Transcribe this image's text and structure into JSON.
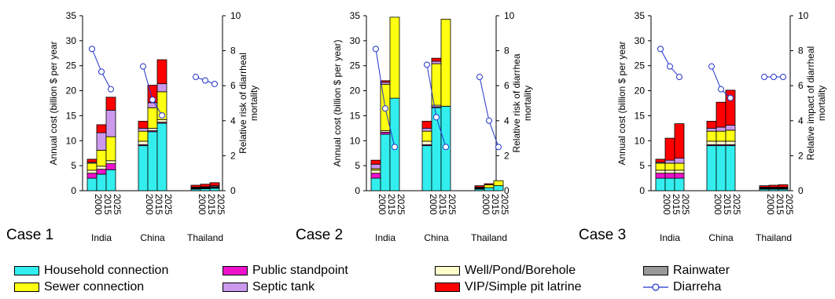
{
  "chart_data": [
    {
      "type": "bar",
      "case_label": "Case 1",
      "categories": [
        "India",
        "China",
        "Thailand"
      ],
      "years": [
        "2000",
        "2015",
        "2025"
      ],
      "ylabel": "Annual cost (billion $ per year",
      "y2label": [
        "Relative risk of diarrheal",
        "mortality"
      ],
      "ylim": [
        0,
        35
      ],
      "y2lim": [
        0,
        10
      ],
      "yticks": [
        "0",
        "5",
        "10",
        "15",
        "20",
        "25",
        "30",
        "35"
      ],
      "y2ticks": [
        "0",
        "2",
        "4",
        "6",
        "8",
        "10"
      ],
      "stacks": {
        "India": [
          [
            2.5,
            1.0,
            0.6,
            1.4,
            0.2,
            0.6
          ],
          [
            3.3,
            1.0,
            0.6,
            3.2,
            3.5,
            1.6
          ],
          [
            4.2,
            1.2,
            0.6,
            4.8,
            5.3,
            2.6
          ]
        ],
        "China": [
          [
            9.0,
            0.2,
            0.7,
            2.0,
            0.6,
            1.4
          ],
          [
            11.8,
            0.2,
            0.5,
            4.1,
            1.0,
            3.5
          ],
          [
            13.5,
            0.2,
            0.5,
            5.6,
            1.6,
            4.8
          ]
        ],
        "Thailand": [
          [
            0.3,
            0.1,
            0.1,
            0.1,
            0.1,
            0.4
          ],
          [
            0.4,
            0.1,
            0.1,
            0.1,
            0.1,
            0.5
          ],
          [
            0.5,
            0.1,
            0.1,
            0.1,
            0.2,
            0.6
          ]
        ]
      },
      "diarrhea": {
        "India": [
          8.1,
          6.8,
          5.8
        ],
        "China": [
          7.1,
          5.2,
          4.3
        ],
        "Thailand": [
          6.5,
          6.3,
          6.1
        ]
      }
    },
    {
      "type": "bar",
      "case_label": "Case 2",
      "categories": [
        "India",
        "China",
        "Thailand"
      ],
      "years": [
        "2000",
        "2015",
        "2025"
      ],
      "ylabel": "Annual cost (billion $ per year)",
      "y2label": [
        "Relative risk of diarrhea",
        "mortality"
      ],
      "ylim": [
        0,
        35
      ],
      "y2lim": [
        0,
        10
      ],
      "yticks": [
        "0",
        "5",
        "10",
        "15",
        "20",
        "25",
        "30",
        "35"
      ],
      "y2ticks": [
        "0",
        "2",
        "4",
        "6",
        "8",
        "10"
      ],
      "stacks": {
        "India": [
          [
            2.5,
            1.0,
            0.6,
            0.3,
            0.9,
            0.8
          ],
          [
            11.3,
            0.4,
            0.3,
            9.3,
            0.4,
            0.3
          ],
          [
            18.5,
            0.0,
            0.0,
            16.2,
            0.0,
            0.0
          ]
        ],
        "China": [
          [
            9.0,
            0.2,
            0.7,
            2.0,
            0.6,
            1.4
          ],
          [
            16.6,
            0.2,
            0.3,
            8.3,
            0.5,
            0.6
          ],
          [
            16.9,
            0.0,
            0.0,
            17.4,
            0.0,
            0.0
          ]
        ],
        "Thailand": [
          [
            0.3,
            0.1,
            0.1,
            0.1,
            0.1,
            0.3
          ],
          [
            0.6,
            0.0,
            0.0,
            0.6,
            0.0,
            0.2
          ],
          [
            1.0,
            0.0,
            0.0,
            1.0,
            0.0,
            0.0
          ]
        ]
      },
      "diarrhea": {
        "India": [
          8.1,
          4.7,
          2.5
        ],
        "China": [
          7.2,
          4.2,
          2.5
        ],
        "Thailand": [
          6.5,
          4.0,
          2.5
        ]
      }
    },
    {
      "type": "bar",
      "case_label": "Case 3",
      "categories": [
        "India",
        "China",
        "Thailand"
      ],
      "years": [
        "2000",
        "2015",
        "2025"
      ],
      "ylabel": "Annual cost (billion $ per year",
      "y2label": [
        "Relative impact of diarrheal",
        "mortality"
      ],
      "ylim": [
        0,
        35
      ],
      "y2lim": [
        0,
        10
      ],
      "yticks": [
        "0",
        "5",
        "10",
        "15",
        "20",
        "25",
        "30",
        "35"
      ],
      "y2ticks": [
        "0",
        "2",
        "4",
        "6",
        "8",
        "10"
      ],
      "stacks": {
        "India": [
          [
            2.5,
            1.0,
            0.6,
            1.4,
            0.2,
            0.6
          ],
          [
            2.5,
            1.0,
            0.6,
            1.4,
            0.6,
            4.4
          ],
          [
            2.5,
            1.0,
            0.6,
            1.4,
            1.0,
            6.9
          ]
        ],
        "China": [
          [
            9.0,
            0.2,
            0.7,
            2.0,
            0.6,
            1.4
          ],
          [
            9.0,
            0.2,
            0.7,
            2.0,
            0.8,
            5.0
          ],
          [
            9.0,
            0.2,
            0.7,
            2.2,
            1.0,
            7.0
          ]
        ],
        "Thailand": [
          [
            0.3,
            0.1,
            0.1,
            0.1,
            0.1,
            0.3
          ],
          [
            0.3,
            0.1,
            0.1,
            0.1,
            0.1,
            0.4
          ],
          [
            0.3,
            0.1,
            0.1,
            0.1,
            0.1,
            0.5
          ]
        ]
      },
      "diarrhea": {
        "India": [
          8.1,
          7.1,
          6.5
        ],
        "China": [
          7.1,
          5.8,
          5.3
        ],
        "Thailand": [
          6.5,
          6.5,
          6.5
        ]
      }
    }
  ],
  "legend": {
    "items": [
      {
        "label": "Household connection",
        "color": "#33eeee",
        "kind": "box"
      },
      {
        "label": "Public standpoint",
        "color": "#ee11cc",
        "kind": "box"
      },
      {
        "label": "Well/Pond/Borehole",
        "color": "#ffffcc",
        "kind": "box"
      },
      {
        "label": "Rainwater",
        "color": "#999999",
        "kind": "box"
      },
      {
        "label": "Sewer connection",
        "color": "#ffff11",
        "kind": "box"
      },
      {
        "label": "Septic tank",
        "color": "#cc99ee",
        "kind": "box"
      },
      {
        "label": "VIP/Simple pit latrine",
        "color": "#ff0000",
        "kind": "box"
      },
      {
        "label": "Diarreha",
        "color": "#2233cc",
        "kind": "line"
      }
    ]
  },
  "colors": {
    "household": "#33eeee",
    "public": "#ee11cc",
    "well": "#ffffcc",
    "rainwater": "#999999",
    "sewer": "#ffff11",
    "septic": "#cc99ee",
    "vip": "#ff0000",
    "diarrhea": "#2233cc"
  }
}
